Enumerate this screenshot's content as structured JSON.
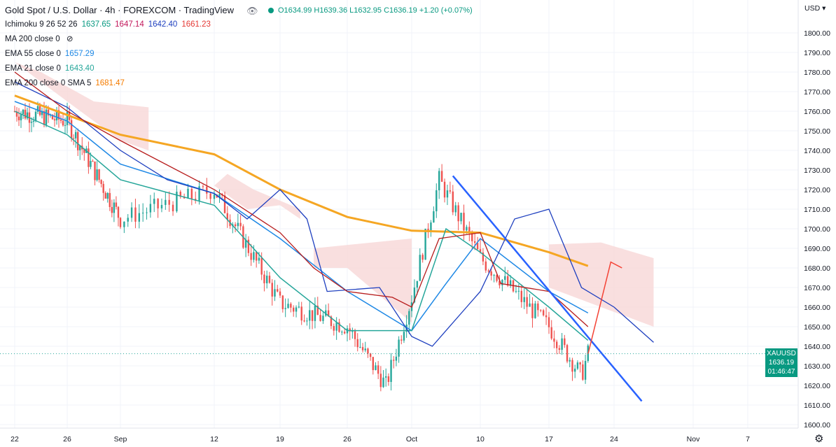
{
  "header": {
    "title": "Gold Spot / U.S. Dollar · 4h · FOREXCOM · TradingView",
    "ohlc": "O1634.99 H1639.36 L1632.95 C1636.19 +1.20 (+0.07%)"
  },
  "indicators": [
    {
      "name": "Ichimoku 9 26 52 26",
      "values": [
        {
          "text": "1637.65",
          "color": "#089981"
        },
        {
          "text": "1647.14",
          "color": "#c2185b"
        },
        {
          "text": "1642.40",
          "color": "#1e3fbf"
        },
        {
          "text": "1661.23",
          "color": "#e53935"
        }
      ]
    },
    {
      "name": "MA 200 close 0",
      "values": []
    },
    {
      "name": "EMA 55 close 0",
      "values": [
        {
          "text": "1657.29",
          "color": "#1e88e5"
        }
      ]
    },
    {
      "name": "EMA 21 close 0",
      "values": [
        {
          "text": "1643.40",
          "color": "#26a69a"
        }
      ]
    },
    {
      "name": "EMA 200 close 0 SMA 5",
      "values": [
        {
          "text": "1681.47",
          "color": "#f57c00"
        }
      ]
    }
  ],
  "price_axis": {
    "currency": "USD",
    "labels": [
      "1800.00",
      "1790.00",
      "1780.00",
      "1770.00",
      "1760.00",
      "1750.00",
      "1740.00",
      "1730.00",
      "1720.00",
      "1710.00",
      "1700.00",
      "1690.00",
      "1680.00",
      "1670.00",
      "1660.00",
      "1650.00",
      "1640.00",
      "1630.00",
      "1620.00",
      "1610.00",
      "1600.00"
    ],
    "price_tag": {
      "symbol": "XAUUSD",
      "price": "1636.19",
      "countdown": "01:46:47"
    }
  },
  "time_axis": {
    "labels": [
      "22",
      "26",
      "Sep",
      "12",
      "19",
      "26",
      "Oct",
      "10",
      "17",
      "24",
      "Nov",
      "7"
    ]
  },
  "colors": {
    "up": "#26a69a",
    "down": "#ef5350",
    "ema200": "#f5a623",
    "ema55": "#1e88e5",
    "ema21": "#26a69a",
    "kijun": "#b71c1c",
    "tenkan": "#1e3fbf",
    "cloud": "#f8d7d7",
    "trend": "#2962ff",
    "projection": "#f44336"
  },
  "chart_data": {
    "type": "line",
    "title": "Gold Spot / U.S. Dollar",
    "ylim": [
      1600,
      1800
    ],
    "x": [
      "Aug 22",
      "Aug 26",
      "Sep 1",
      "Sep 12",
      "Sep 19",
      "Sep 26",
      "Oct 1",
      "Oct 10",
      "Oct 17",
      "Oct 24",
      "Nov 1",
      "Nov 7"
    ],
    "series": [
      {
        "name": "EMA 200 close 0 SMA 5",
        "points": [
          [
            0,
            1768
          ],
          [
            2,
            1748
          ],
          [
            3,
            1738
          ],
          [
            4,
            1720
          ],
          [
            5,
            1706
          ],
          [
            6,
            1699
          ],
          [
            7,
            1698
          ],
          [
            8,
            1688
          ],
          [
            8.6,
            1681
          ]
        ]
      },
      {
        "name": "EMA 55 close 0",
        "points": [
          [
            0,
            1765
          ],
          [
            1,
            1755
          ],
          [
            2,
            1733
          ],
          [
            3,
            1718
          ],
          [
            4,
            1695
          ],
          [
            5,
            1668
          ],
          [
            6,
            1648
          ],
          [
            6.5,
            1672
          ],
          [
            7,
            1695
          ],
          [
            8,
            1668
          ],
          [
            8.6,
            1657
          ]
        ]
      },
      {
        "name": "EMA 21 close 0",
        "points": [
          [
            0,
            1760
          ],
          [
            1,
            1748
          ],
          [
            2,
            1725
          ],
          [
            3,
            1712
          ],
          [
            4,
            1675
          ],
          [
            5,
            1648
          ],
          [
            6,
            1648
          ],
          [
            6.5,
            1700
          ],
          [
            7,
            1688
          ],
          [
            8,
            1660
          ],
          [
            8.6,
            1643
          ]
        ]
      },
      {
        "name": "Price",
        "points": [
          [
            0,
            1760
          ],
          [
            1,
            1755
          ],
          [
            2,
            1705
          ],
          [
            3,
            1720
          ],
          [
            4,
            1662
          ],
          [
            5,
            1650
          ],
          [
            5.6,
            1620
          ],
          [
            6,
            1665
          ],
          [
            6.4,
            1725
          ],
          [
            7,
            1685
          ],
          [
            8,
            1650
          ],
          [
            8.5,
            1625
          ],
          [
            8.6,
            1636.19
          ]
        ]
      }
    ],
    "current_price": 1636.19
  }
}
